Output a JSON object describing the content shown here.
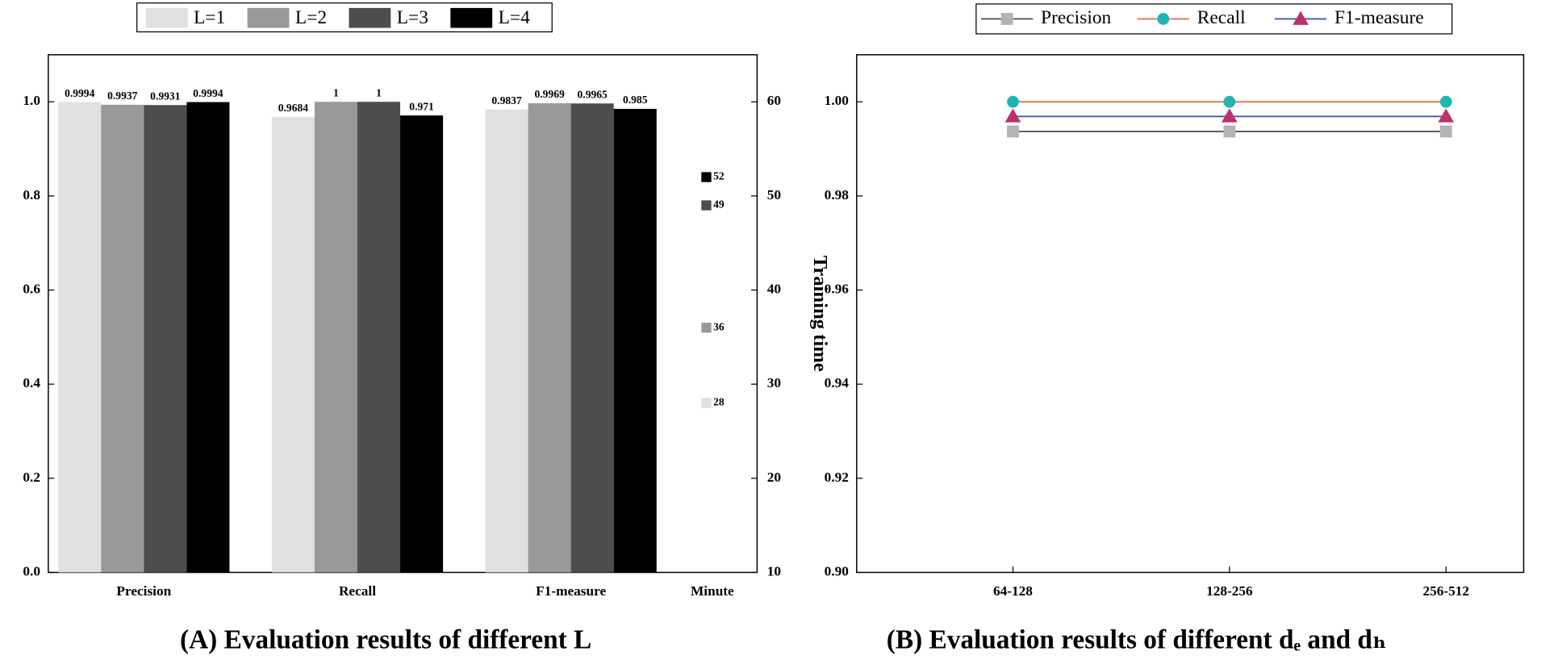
{
  "chart_data": [
    {
      "type": "bar",
      "title": "(A) Evaluation results of different L",
      "categories": [
        "Precision",
        "Recall",
        "F1-measure"
      ],
      "series": [
        {
          "name": "L=1",
          "color": "#e0e0e0",
          "values": [
            0.9994,
            0.9684,
            0.9837
          ],
          "time": 28
        },
        {
          "name": "L=2",
          "color": "#999999",
          "values": [
            0.9937,
            1,
            0.9969
          ],
          "time": 36
        },
        {
          "name": "L=3",
          "color": "#4d4d4d",
          "values": [
            0.9931,
            1,
            0.9965
          ],
          "time": 49
        },
        {
          "name": "L=4",
          "color": "#000000",
          "values": [
            0.9994,
            0.971,
            0.985
          ],
          "time": 52
        }
      ],
      "time_category": "Minute",
      "y2_label": "Training time",
      "ylim": [
        0,
        1.1
      ],
      "yticks": [
        {
          "value": 0,
          "label": "0.0"
        },
        0.2,
        0.4,
        0.6,
        0.8,
        {
          "value": 1,
          "label": "1.0"
        }
      ],
      "y2lim": [
        10,
        65
      ],
      "y2ticks": [
        10,
        20,
        30,
        40,
        50,
        60
      ]
    },
    {
      "type": "line",
      "title": "(B) Evaluation results of different dₑ and dₕ",
      "categories": [
        "64-128",
        "128-256",
        "256-512"
      ],
      "series": [
        {
          "name": "Precision",
          "color": "#555555",
          "marker_color": "#b3b3b3",
          "marker": "square",
          "values": [
            0.9937,
            0.9937,
            0.9937
          ]
        },
        {
          "name": "Recall",
          "color": "#e8734a",
          "marker_color": "#1fb5b0",
          "marker": "circle",
          "values": [
            1,
            1,
            1
          ]
        },
        {
          "name": "F1-measure",
          "color": "#3f55b5",
          "marker_color": "#c0306a",
          "marker": "triangle",
          "values": [
            0.9969,
            0.9969,
            0.9969
          ]
        }
      ],
      "ylim": [
        0.9,
        1.01
      ],
      "yticks": [
        {
          "value": 0.9,
          "label": "0.90"
        },
        {
          "value": 0.92,
          "label": "0.92"
        },
        {
          "value": 0.94,
          "label": "0.94"
        },
        {
          "value": 0.96,
          "label": "0.96"
        },
        {
          "value": 0.98,
          "label": "0.98"
        },
        {
          "value": 1,
          "label": "1.00"
        }
      ]
    }
  ]
}
